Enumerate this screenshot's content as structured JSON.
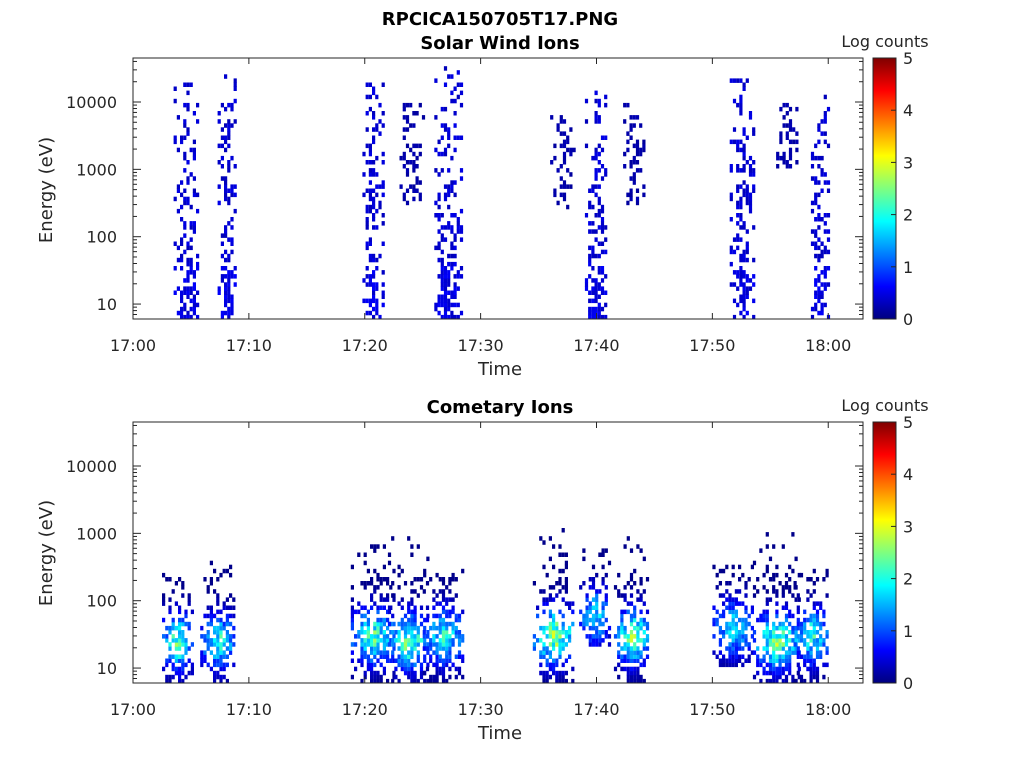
{
  "figure_title": "RPCICA150705T17.PNG",
  "colors": {
    "axis": "#262626",
    "colormap": [
      "#00007f",
      "#0000ff",
      "#007fff",
      "#00ffff",
      "#7fff7f",
      "#ffff00",
      "#ff7f00",
      "#ff0000",
      "#7f0000"
    ]
  },
  "chart_data": [
    {
      "type": "heatmap",
      "title": "Solar Wind Ions",
      "xlabel": "Time",
      "ylabel": "Energy (eV)",
      "xscale": "time",
      "yscale": "log",
      "xlim": [
        "17:00",
        "18:03"
      ],
      "ylim": [
        6,
        45000
      ],
      "x_ticks": [
        "17:00",
        "17:10",
        "17:20",
        "17:30",
        "17:40",
        "17:50",
        "18:00"
      ],
      "y_ticks": [
        10,
        100,
        1000,
        10000
      ],
      "y_tick_labels": [
        "10",
        "100",
        "1000",
        "10000"
      ],
      "colorbar": {
        "label": "Log counts",
        "range": [
          0,
          5
        ],
        "ticks": [
          "0",
          "1",
          "2",
          "3",
          "4",
          "5"
        ]
      },
      "bursts": [
        {
          "start": "17:03.5",
          "end": "17:05.5",
          "emin": 6,
          "emax": 20000,
          "peak_log_counts": 0.4
        },
        {
          "start": "17:07.3",
          "end": "17:08.8",
          "emin": 6,
          "emax": 27000,
          "peak_log_counts": 0.4
        },
        {
          "start": "17:19.8",
          "end": "17:21.5",
          "emin": 6,
          "emax": 20000,
          "peak_log_counts": 0.4
        },
        {
          "start": "17:23.0",
          "end": "17:25.0",
          "emin": 300,
          "emax": 10000,
          "peak_log_counts": 0.2
        },
        {
          "start": "17:26.0",
          "end": "17:28.3",
          "emin": 6,
          "emax": 35000,
          "peak_log_counts": 0.4
        },
        {
          "start": "17:36.0",
          "end": "17:38.0",
          "emin": 250,
          "emax": 6000,
          "peak_log_counts": 0.2
        },
        {
          "start": "17:39.0",
          "end": "17:40.8",
          "emin": 6,
          "emax": 15000,
          "peak_log_counts": 0.4
        },
        {
          "start": "17:42.3",
          "end": "17:44.0",
          "emin": 300,
          "emax": 10000,
          "peak_log_counts": 0.2
        },
        {
          "start": "17:51.5",
          "end": "17:53.5",
          "emin": 6,
          "emax": 22000,
          "peak_log_counts": 0.4
        },
        {
          "start": "17:55.5",
          "end": "17:57.3",
          "emin": 1000,
          "emax": 10000,
          "peak_log_counts": 0.2
        },
        {
          "start": "17:58.5",
          "end": "18:00.0",
          "emin": 6,
          "emax": 15000,
          "peak_log_counts": 0.4
        }
      ]
    },
    {
      "type": "heatmap",
      "title": "Cometary Ions",
      "xlabel": "Time",
      "ylabel": "Energy (eV)",
      "xscale": "time",
      "yscale": "log",
      "xlim": [
        "17:00",
        "18:03"
      ],
      "ylim": [
        6,
        45000
      ],
      "x_ticks": [
        "17:00",
        "17:10",
        "17:20",
        "17:30",
        "17:40",
        "17:50",
        "18:00"
      ],
      "y_ticks": [
        10,
        100,
        1000,
        10000
      ],
      "y_tick_labels": [
        "10",
        "100",
        "1000",
        "10000"
      ],
      "colorbar": {
        "label": "Log counts",
        "range": [
          0,
          5
        ],
        "ticks": [
          "0",
          "1",
          "2",
          "3",
          "4",
          "5"
        ]
      },
      "bursts": [
        {
          "start": "17:02.5",
          "end": "17:05.0",
          "emin": 6,
          "emax": 250,
          "peak_log_counts": 2.3,
          "core_energy": 25
        },
        {
          "start": "17:05.8",
          "end": "17:08.8",
          "emin": 6,
          "emax": 400,
          "peak_log_counts": 2.0,
          "core_energy": 25
        },
        {
          "start": "17:18.8",
          "end": "17:22.5",
          "emin": 6,
          "emax": 800,
          "peak_log_counts": 2.2,
          "core_energy": 30
        },
        {
          "start": "17:22.0",
          "end": "17:25.5",
          "emin": 6,
          "emax": 900,
          "peak_log_counts": 2.4,
          "core_energy": 25
        },
        {
          "start": "17:25.0",
          "end": "17:28.5",
          "emin": 6,
          "emax": 300,
          "peak_log_counts": 2.0,
          "core_energy": 30
        },
        {
          "start": "17:34.5",
          "end": "17:38.0",
          "emin": 6,
          "emax": 1500,
          "peak_log_counts": 2.6,
          "core_energy": 30
        },
        {
          "start": "17:38.5",
          "end": "17:41.0",
          "emin": 20,
          "emax": 600,
          "peak_log_counts": 1.8,
          "core_energy": 60
        },
        {
          "start": "17:41.5",
          "end": "17:44.5",
          "emin": 6,
          "emax": 900,
          "peak_log_counts": 2.4,
          "core_energy": 30
        },
        {
          "start": "17:50.0",
          "end": "17:53.5",
          "emin": 10,
          "emax": 500,
          "peak_log_counts": 1.8,
          "core_energy": 40
        },
        {
          "start": "17:53.5",
          "end": "17:57.5",
          "emin": 6,
          "emax": 1100,
          "peak_log_counts": 2.4,
          "core_energy": 25
        },
        {
          "start": "17:57.0",
          "end": "18:00.0",
          "emin": 6,
          "emax": 300,
          "peak_log_counts": 2.0,
          "core_energy": 30
        }
      ]
    }
  ]
}
